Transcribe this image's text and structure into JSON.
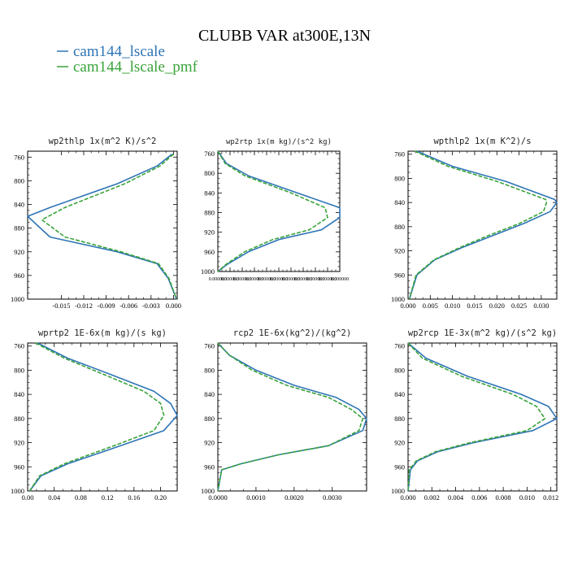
{
  "figure": {
    "title": "CLUBB VAR at300E,13N",
    "legend": [
      {
        "label": "cam144_lscale",
        "color": "#2e75b6",
        "dash": false
      },
      {
        "label": "cam144_lscale_pmf",
        "color": "#3aa33a",
        "dash": true
      }
    ]
  },
  "chart_data": [
    {
      "type": "line",
      "title": "wp2thlp  1x(m^2 K)/s^2",
      "xlim": [
        -0.0195,
        0.0005
      ],
      "ylim": [
        1000,
        750
      ],
      "yticks": [
        760,
        800,
        840,
        880,
        920,
        960,
        1000
      ],
      "xticks": [
        -0.015,
        -0.012,
        -0.009,
        -0.006,
        -0.003,
        0.0
      ],
      "xtick_labels": [
        "-0.015",
        "-0.012",
        "-0.009",
        "-0.006",
        "-0.003",
        "0.000"
      ],
      "series": [
        {
          "name": "cam144_lscale",
          "color": "#2e75b6",
          "dash": false,
          "x": [
            -0.0002,
            -0.0022,
            -0.0075,
            -0.0165,
            -0.0195,
            -0.0165,
            -0.0075,
            -0.0022,
            -0.0007,
            0.0004
          ],
          "y": [
            755,
            775,
            805,
            845,
            860,
            895,
            920,
            940,
            965,
            1000
          ]
        },
        {
          "name": "cam144_lscale_pmf",
          "color": "#3aa33a",
          "dash": true,
          "x": [
            0.0,
            -0.0018,
            -0.0065,
            -0.0145,
            -0.0176,
            -0.0145,
            -0.007,
            -0.002,
            -0.0006,
            0.0004
          ],
          "y": [
            755,
            775,
            805,
            845,
            866,
            895,
            920,
            940,
            965,
            1000
          ]
        }
      ]
    },
    {
      "type": "line",
      "title": "wp2rtp  1x(m kg)/(s^2 kg)",
      "xlim": [
        0.0,
        1.0
      ],
      "ylim": [
        1000,
        755
      ],
      "yticks": [
        760,
        800,
        840,
        880,
        920,
        960,
        1000
      ],
      "xticks": [
        0.0,
        0.1,
        0.2,
        0.3,
        0.4,
        0.5,
        0.6,
        0.7,
        0.8,
        0.9,
        1.0
      ],
      "xtick_labels": [
        "0.000000",
        "0.000000",
        "0.000000",
        "0.000000",
        "0.000000",
        "0.000000",
        "0.000000",
        "0.000000",
        "0.000000",
        "0.000000",
        "0.000000"
      ],
      "series": [
        {
          "name": "cam144_lscale",
          "color": "#2e75b6",
          "dash": false,
          "x": [
            0.0,
            0.07,
            0.25,
            0.65,
            1.0,
            1.0,
            0.85,
            0.5,
            0.25,
            0.08,
            0.0
          ],
          "y": [
            755,
            780,
            805,
            840,
            870,
            890,
            915,
            935,
            960,
            985,
            1000
          ]
        },
        {
          "name": "cam144_lscale_pmf",
          "color": "#3aa33a",
          "dash": true,
          "x": [
            0.0,
            0.06,
            0.22,
            0.6,
            0.88,
            0.9,
            0.75,
            0.45,
            0.22,
            0.07,
            0.0
          ],
          "y": [
            755,
            780,
            805,
            840,
            870,
            890,
            915,
            935,
            960,
            985,
            1000
          ]
        }
      ]
    },
    {
      "type": "line",
      "title": "wpthlp2  1x(m K^2)/s",
      "xlim": [
        0.0,
        0.0335
      ],
      "ylim": [
        1000,
        755
      ],
      "yticks": [
        760,
        800,
        840,
        880,
        920,
        960,
        1000
      ],
      "xticks": [
        0.0,
        0.005,
        0.01,
        0.015,
        0.02,
        0.025,
        0.03
      ],
      "xtick_labels": [
        "0.000",
        "0.005",
        "0.010",
        "0.015",
        "0.020",
        "0.025",
        "0.030"
      ],
      "series": [
        {
          "name": "cam144_lscale",
          "color": "#2e75b6",
          "dash": false,
          "x": [
            0.002,
            0.01,
            0.022,
            0.033,
            0.0335,
            0.032,
            0.026,
            0.019,
            0.012,
            0.006,
            0.002,
            0.0003
          ],
          "y": [
            755,
            780,
            805,
            835,
            840,
            855,
            875,
            895,
            915,
            935,
            960,
            1000
          ]
        },
        {
          "name": "cam144_lscale_pmf",
          "color": "#3aa33a",
          "dash": true,
          "x": [
            0.0015,
            0.009,
            0.02,
            0.031,
            0.0312,
            0.0305,
            0.025,
            0.018,
            0.0115,
            0.0058,
            0.0018,
            0.0003
          ],
          "y": [
            755,
            780,
            805,
            835,
            840,
            855,
            875,
            895,
            915,
            935,
            960,
            1000
          ]
        }
      ]
    },
    {
      "type": "line",
      "title": "wprtp2  1E-6x(m kg)/(s kg)",
      "xlim": [
        0.0,
        0.225
      ],
      "ylim": [
        1000,
        755
      ],
      "yticks": [
        760,
        800,
        840,
        880,
        920,
        960,
        1000
      ],
      "xticks": [
        0.0,
        0.04,
        0.08,
        0.12,
        0.16,
        0.2
      ],
      "xtick_labels": [
        "0.00",
        "0.04",
        "0.08",
        "0.12",
        "0.16",
        "0.20"
      ],
      "series": [
        {
          "name": "cam144_lscale",
          "color": "#2e75b6",
          "dash": false,
          "x": [
            0.015,
            0.06,
            0.12,
            0.19,
            0.215,
            0.225,
            0.205,
            0.14,
            0.06,
            0.02,
            0.003
          ],
          "y": [
            755,
            780,
            805,
            835,
            855,
            875,
            900,
            925,
            955,
            975,
            1000
          ]
        },
        {
          "name": "cam144_lscale_pmf",
          "color": "#3aa33a",
          "dash": true,
          "x": [
            0.012,
            0.055,
            0.11,
            0.175,
            0.2,
            0.205,
            0.19,
            0.13,
            0.055,
            0.018,
            0.003
          ],
          "y": [
            755,
            780,
            805,
            835,
            855,
            875,
            900,
            925,
            955,
            975,
            1000
          ]
        }
      ]
    },
    {
      "type": "line",
      "title": "rcp2  1E-6x(kg^2)/(kg^2)",
      "xlim": [
        0.0,
        0.0039
      ],
      "ylim": [
        1000,
        755
      ],
      "yticks": [
        760,
        800,
        840,
        880,
        920,
        960,
        1000
      ],
      "xticks": [
        0.0,
        0.001,
        0.002,
        0.003
      ],
      "xtick_labels": [
        "0.0000",
        "0.0010",
        "0.0020",
        "0.0030"
      ],
      "series": [
        {
          "name": "cam144_lscale",
          "color": "#2e75b6",
          "dash": false,
          "x": [
            0.0,
            0.0003,
            0.001,
            0.002,
            0.0031,
            0.0037,
            0.0039,
            0.0038,
            0.0029,
            0.0016,
            0.0006,
            0.0001,
            0.0
          ],
          "y": [
            755,
            775,
            800,
            825,
            845,
            865,
            880,
            900,
            925,
            940,
            955,
            965,
            1000
          ]
        },
        {
          "name": "cam144_lscale_pmf",
          "color": "#3aa33a",
          "dash": true,
          "x": [
            0.0,
            0.0003,
            0.0009,
            0.0018,
            0.0029,
            0.0035,
            0.0038,
            0.0037,
            0.0029,
            0.0016,
            0.0006,
            0.0001,
            0.0
          ],
          "y": [
            755,
            775,
            800,
            825,
            845,
            865,
            880,
            900,
            925,
            940,
            955,
            965,
            1000
          ]
        }
      ]
    },
    {
      "type": "line",
      "title": "wp2rcp  1E-3x(m^2 kg)/(s^2 kg)",
      "xlim": [
        0.0,
        0.0125
      ],
      "ylim": [
        1000,
        755
      ],
      "yticks": [
        760,
        800,
        840,
        880,
        920,
        960,
        1000
      ],
      "xticks": [
        0.0,
        0.002,
        0.004,
        0.006,
        0.008,
        0.01,
        0.012
      ],
      "xtick_labels": [
        "0.000",
        "0.002",
        "0.004",
        "0.006",
        "0.008",
        "0.010",
        "0.012"
      ],
      "series": [
        {
          "name": "cam144_lscale",
          "color": "#2e75b6",
          "dash": false,
          "x": [
            0.0,
            0.0015,
            0.005,
            0.0095,
            0.0118,
            0.0125,
            0.0105,
            0.0055,
            0.0025,
            0.0008,
            0.0002,
            0.0
          ],
          "y": [
            755,
            780,
            810,
            840,
            860,
            880,
            900,
            920,
            935,
            950,
            965,
            1000
          ]
        },
        {
          "name": "cam144_lscale_pmf",
          "color": "#3aa33a",
          "dash": true,
          "x": [
            0.0,
            0.0012,
            0.0045,
            0.0088,
            0.0108,
            0.0115,
            0.01,
            0.0052,
            0.0023,
            0.0007,
            0.0001,
            0.0
          ],
          "y": [
            755,
            780,
            810,
            840,
            860,
            880,
            900,
            920,
            935,
            950,
            965,
            1000
          ]
        }
      ]
    }
  ]
}
